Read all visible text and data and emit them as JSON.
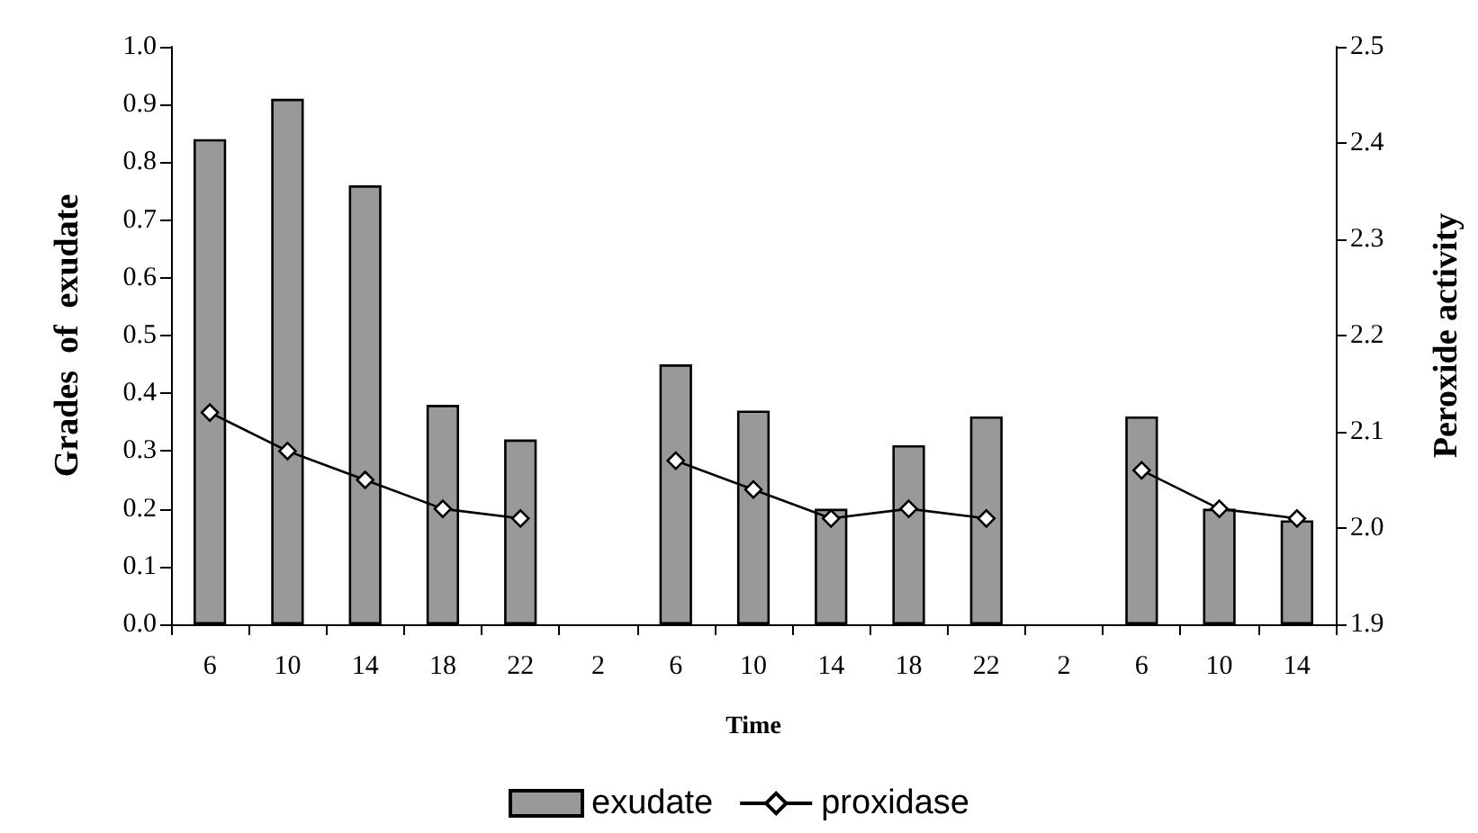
{
  "chart_data": {
    "type": "bar",
    "xlabel": "Time",
    "ylabel": "Grades  of  exudate",
    "y2label": "Peroxide activity",
    "categories": [
      "6",
      "10",
      "14",
      "18",
      "22",
      "2",
      "6",
      "10",
      "14",
      "18",
      "22",
      "2",
      "6",
      "10",
      "14"
    ],
    "series": [
      {
        "name": "exudate",
        "color": "#999999",
        "values": [
          0.84,
          0.91,
          0.76,
          0.38,
          0.32,
          null,
          0.45,
          0.37,
          0.2,
          0.31,
          0.36,
          null,
          0.36,
          0.2,
          0.18
        ]
      },
      {
        "name": "proxidase",
        "type": "line",
        "axis": "y2",
        "color": "#000000",
        "marker": "diamond",
        "values": [
          2.12,
          2.08,
          2.05,
          2.02,
          2.01,
          null,
          2.07,
          2.04,
          2.01,
          2.02,
          2.01,
          null,
          2.06,
          2.02,
          2.01
        ]
      }
    ],
    "ylim": [
      0,
      1.0
    ],
    "yticks": [
      {
        "value": 0,
        "label": "0.0"
      },
      {
        "value": 0.1,
        "label": "0.1"
      },
      {
        "value": 0.2,
        "label": "0.2"
      },
      {
        "value": 0.3,
        "label": "0.3"
      },
      {
        "value": 0.4,
        "label": "0.4"
      },
      {
        "value": 0.5,
        "label": "0.5"
      },
      {
        "value": 0.6,
        "label": "0.6"
      },
      {
        "value": 0.7,
        "label": "0.7"
      },
      {
        "value": 0.8,
        "label": "0.8"
      },
      {
        "value": 0.9,
        "label": "0.9"
      },
      {
        "value": 1.0,
        "label": "1.0"
      }
    ],
    "y2lim": [
      1.9,
      2.5
    ],
    "y2ticks": [
      {
        "value": 1.9,
        "label": "1.9"
      },
      {
        "value": 2.0,
        "label": "2.0"
      },
      {
        "value": 2.1,
        "label": "2.1"
      },
      {
        "value": 2.2,
        "label": "2.2"
      },
      {
        "value": 2.3,
        "label": "2.3"
      },
      {
        "value": 2.4,
        "label": "2.4"
      },
      {
        "value": 2.5,
        "label": "2.5"
      }
    ],
    "grid": false,
    "legend": "bottom"
  }
}
